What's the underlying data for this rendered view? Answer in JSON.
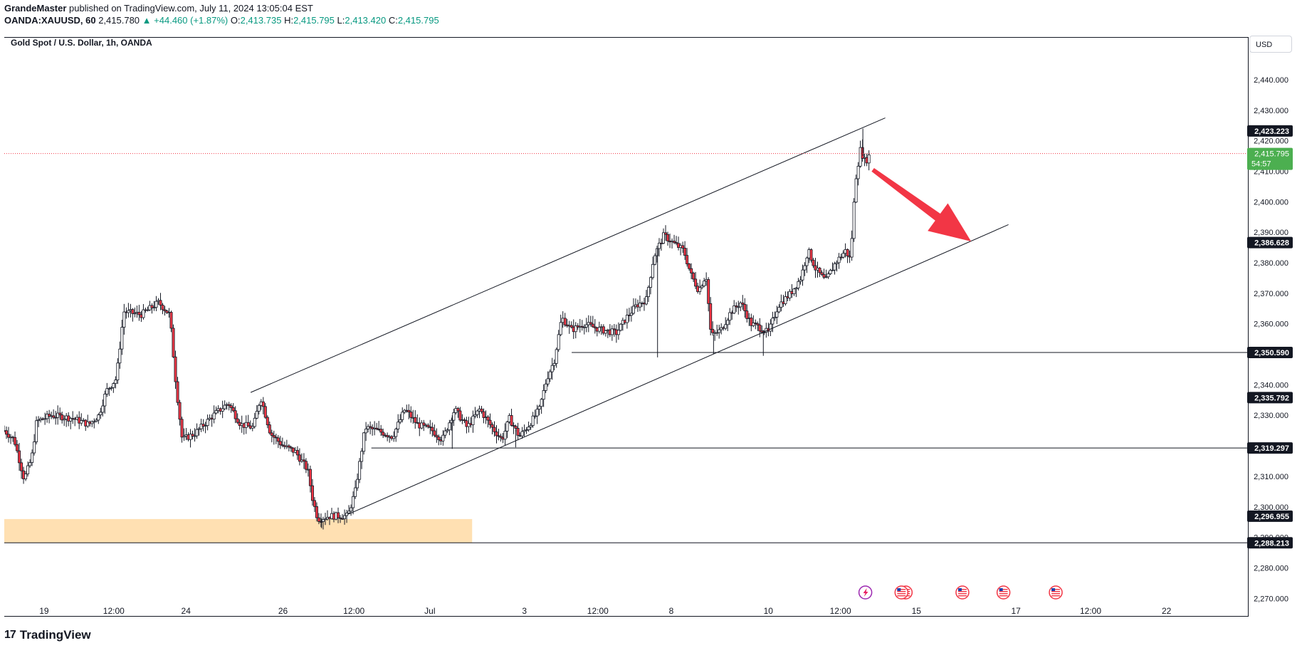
{
  "header": {
    "author": "GrandeMaster",
    "published_text": "published on TradingView.com, July 11, 2024 13:05:04 EST",
    "symbol": "OANDA:XAUUSD, 60",
    "last": "2,415.780",
    "change": "▲ +44.460 (+1.87%)",
    "o_label": "O:",
    "o_value": "2,413.735",
    "h_label": "H:",
    "h_value": "2,415.795",
    "l_label": "L:",
    "l_value": "2,413.420",
    "c_label": "C:",
    "c_value": "2,415.795"
  },
  "chart_title": "Gold Spot / U.S. Dollar, 1h, OANDA",
  "currency_button": "USD",
  "footer": {
    "logo_mark": "17",
    "brand": "TradingView"
  },
  "colors": {
    "up": "#089981",
    "down": "#f23645",
    "candle_up_body": "#ffffff",
    "zone": "#ffe0b2",
    "arrow": "#f23645",
    "price_tag": "#4caf50",
    "dark_tag": "#131722"
  },
  "chart_data": {
    "type": "candlestick",
    "title": "Gold Spot / U.S. Dollar, 1h, OANDA",
    "ylim": [
      2264,
      2454
    ],
    "xlim": [
      0,
      1000
    ],
    "yticks": [
      2270,
      2280,
      2290,
      2300,
      2310,
      2320,
      2330,
      2340,
      2350,
      2360,
      2370,
      2380,
      2390,
      2400,
      2410,
      2420,
      2430,
      2440
    ],
    "ytick_labels": [
      "2,270.000",
      "2,280.000",
      "2,290.000",
      "2,300.000",
      "2,310.000",
      "2,320.000",
      "2,330.000",
      "2,340.000",
      "2,350.000",
      "2,360.000",
      "2,370.000",
      "2,380.000",
      "2,390.000",
      "2,400.000",
      "2,410.000",
      "2,420.000",
      "2,430.000",
      "2,440.000"
    ],
    "xticks": [
      {
        "t": 32,
        "label": "19"
      },
      {
        "t": 88,
        "label": "12:00"
      },
      {
        "t": 146,
        "label": "24"
      },
      {
        "t": 224,
        "label": "26"
      },
      {
        "t": 281,
        "label": "12:00"
      },
      {
        "t": 342,
        "label": "Jul"
      },
      {
        "t": 418,
        "label": "3"
      },
      {
        "t": 477,
        "label": "12:00"
      },
      {
        "t": 536,
        "label": "8"
      },
      {
        "t": 614,
        "label": "10"
      },
      {
        "t": 672,
        "label": "12:00"
      },
      {
        "t": 733,
        "label": "15"
      },
      {
        "t": 813,
        "label": "17"
      },
      {
        "t": 873,
        "label": "12:00"
      },
      {
        "t": 934,
        "label": "22"
      }
    ],
    "price_labels": [
      {
        "value": 2423.223,
        "label": "2,423.223"
      },
      {
        "value": 2386.628,
        "label": "2,386.628"
      },
      {
        "value": 2350.59,
        "label": "2,350.590"
      },
      {
        "value": 2335.792,
        "label": "2,335.792"
      },
      {
        "value": 2319.297,
        "label": "2,319.297"
      },
      {
        "value": 2296.955,
        "label": "2,296.955"
      },
      {
        "value": 2288.213,
        "label": "2,288.213"
      }
    ],
    "current_price": {
      "value": 2415.795,
      "label": "2,415.795",
      "countdown": "54:57"
    },
    "horizontal_lines": [
      {
        "value": 2350.59,
        "t_start": 456
      },
      {
        "value": 2319.297,
        "t_start": 295
      },
      {
        "value": 2288.213,
        "t_start": 0
      }
    ],
    "trendlines": [
      {
        "t1": 198,
        "v1": 2337.5,
        "t2": 708,
        "v2": 2427.5
      },
      {
        "t1": 276,
        "v1": 2297.5,
        "t2": 807,
        "v2": 2392.5
      }
    ],
    "zone": {
      "t1": 0,
      "t2": 376,
      "v_low": 2288.2,
      "v_high": 2296.0
    },
    "arrow": {
      "t1": 698,
      "v1": 2410.5,
      "t2": 777,
      "v2": 2387.0,
      "direction": "down"
    },
    "price_path": [
      {
        "t": 0,
        "v": 2325
      },
      {
        "t": 8,
        "v": 2322
      },
      {
        "t": 16,
        "v": 2309
      },
      {
        "t": 22,
        "v": 2316
      },
      {
        "t": 26,
        "v": 2328
      },
      {
        "t": 38,
        "v": 2330
      },
      {
        "t": 55,
        "v": 2329
      },
      {
        "t": 68,
        "v": 2327
      },
      {
        "t": 76,
        "v": 2330
      },
      {
        "t": 82,
        "v": 2338
      },
      {
        "t": 90,
        "v": 2342
      },
      {
        "t": 96,
        "v": 2364
      },
      {
        "t": 110,
        "v": 2363
      },
      {
        "t": 124,
        "v": 2367
      },
      {
        "t": 133,
        "v": 2363
      },
      {
        "t": 138,
        "v": 2340
      },
      {
        "t": 143,
        "v": 2322
      },
      {
        "t": 153,
        "v": 2324
      },
      {
        "t": 168,
        "v": 2330
      },
      {
        "t": 180,
        "v": 2334
      },
      {
        "t": 190,
        "v": 2327
      },
      {
        "t": 200,
        "v": 2326
      },
      {
        "t": 206,
        "v": 2336
      },
      {
        "t": 214,
        "v": 2324
      },
      {
        "t": 224,
        "v": 2320
      },
      {
        "t": 234,
        "v": 2318
      },
      {
        "t": 244,
        "v": 2312
      },
      {
        "t": 248,
        "v": 2302
      },
      {
        "t": 252,
        "v": 2296
      },
      {
        "t": 262,
        "v": 2297
      },
      {
        "t": 276,
        "v": 2297
      },
      {
        "t": 282,
        "v": 2305
      },
      {
        "t": 290,
        "v": 2326
      },
      {
        "t": 300,
        "v": 2325
      },
      {
        "t": 312,
        "v": 2323
      },
      {
        "t": 322,
        "v": 2332
      },
      {
        "t": 332,
        "v": 2327
      },
      {
        "t": 344,
        "v": 2325
      },
      {
        "t": 352,
        "v": 2322
      },
      {
        "t": 362,
        "v": 2332
      },
      {
        "t": 372,
        "v": 2326
      },
      {
        "t": 382,
        "v": 2332
      },
      {
        "t": 392,
        "v": 2326
      },
      {
        "t": 400,
        "v": 2322
      },
      {
        "t": 406,
        "v": 2329
      },
      {
        "t": 414,
        "v": 2323
      },
      {
        "t": 422,
        "v": 2327
      },
      {
        "t": 430,
        "v": 2332
      },
      {
        "t": 436,
        "v": 2342
      },
      {
        "t": 442,
        "v": 2348
      },
      {
        "t": 448,
        "v": 2362
      },
      {
        "t": 456,
        "v": 2358
      },
      {
        "t": 466,
        "v": 2360
      },
      {
        "t": 480,
        "v": 2358
      },
      {
        "t": 492,
        "v": 2357
      },
      {
        "t": 500,
        "v": 2362
      },
      {
        "t": 508,
        "v": 2366
      },
      {
        "t": 516,
        "v": 2368
      },
      {
        "t": 522,
        "v": 2382
      },
      {
        "t": 530,
        "v": 2389
      },
      {
        "t": 536,
        "v": 2387
      },
      {
        "t": 546,
        "v": 2384
      },
      {
        "t": 552,
        "v": 2376
      },
      {
        "t": 558,
        "v": 2371
      },
      {
        "t": 564,
        "v": 2376
      },
      {
        "t": 568,
        "v": 2356
      },
      {
        "t": 576,
        "v": 2358
      },
      {
        "t": 584,
        "v": 2364
      },
      {
        "t": 592,
        "v": 2367
      },
      {
        "t": 600,
        "v": 2360
      },
      {
        "t": 606,
        "v": 2359
      },
      {
        "t": 614,
        "v": 2357
      },
      {
        "t": 622,
        "v": 2366
      },
      {
        "t": 632,
        "v": 2370
      },
      {
        "t": 640,
        "v": 2375
      },
      {
        "t": 646,
        "v": 2384
      },
      {
        "t": 652,
        "v": 2378
      },
      {
        "t": 660,
        "v": 2374
      },
      {
        "t": 668,
        "v": 2380
      },
      {
        "t": 676,
        "v": 2384
      },
      {
        "t": 680,
        "v": 2381
      },
      {
        "t": 684,
        "v": 2407
      },
      {
        "t": 688,
        "v": 2417
      },
      {
        "t": 692,
        "v": 2413
      },
      {
        "t": 696,
        "v": 2415.8
      }
    ],
    "wick_spikes": [
      {
        "t": 525,
        "low": 2349
      },
      {
        "t": 570,
        "low": 2350
      },
      {
        "t": 610,
        "low": 2349.5
      },
      {
        "t": 255,
        "low": 2293
      },
      {
        "t": 360,
        "low": 2319
      },
      {
        "t": 411,
        "low": 2319.5
      },
      {
        "t": 690,
        "high": 2424
      }
    ],
    "event_icons": [
      {
        "t": 692,
        "kind": "lightning"
      },
      {
        "t": 721,
        "kind": "us-flag-double"
      },
      {
        "t": 770,
        "kind": "us-flag"
      },
      {
        "t": 803,
        "kind": "us-flag"
      },
      {
        "t": 845,
        "kind": "us-flag"
      }
    ]
  }
}
